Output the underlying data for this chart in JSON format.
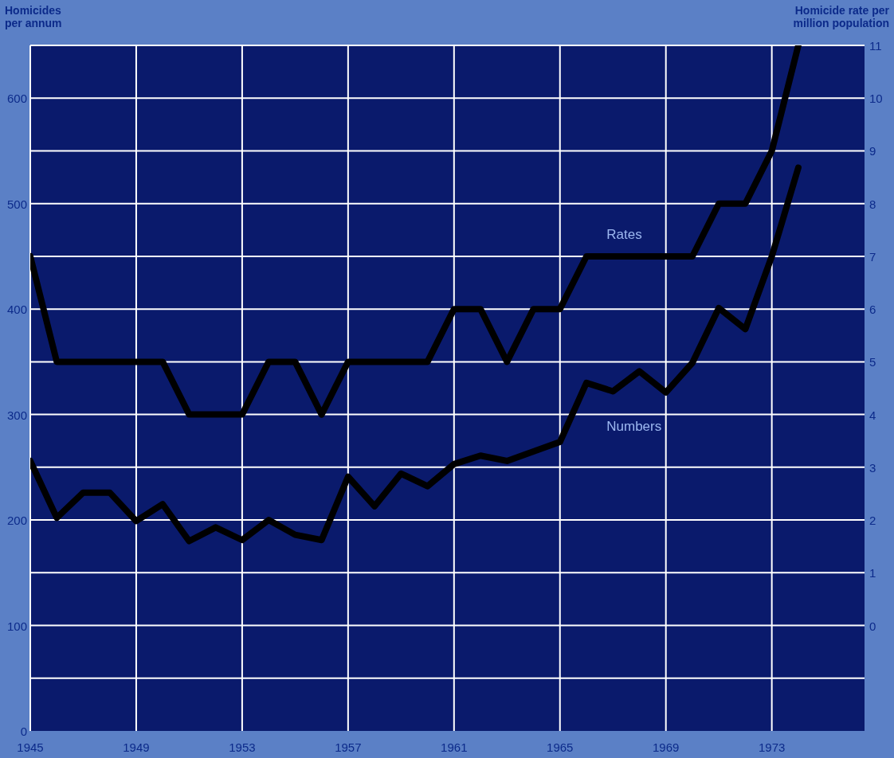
{
  "chart_data": {
    "type": "line",
    "ylabel": "Homicides\nper annum",
    "y2label": "Homicide rate per\nmillion population",
    "x": [
      1945,
      1946,
      1947,
      1948,
      1949,
      1950,
      1951,
      1952,
      1953,
      1954,
      1955,
      1956,
      1957,
      1958,
      1959,
      1960,
      1961,
      1962,
      1963,
      1964,
      1965,
      1966,
      1967,
      1968,
      1969,
      1970,
      1971,
      1972,
      1973,
      1974
    ],
    "series": [
      {
        "name": "Rates",
        "color": "#000000",
        "axis": "y2",
        "values": [
          7,
          5,
          5,
          5,
          5,
          5,
          4,
          4,
          4,
          5,
          5,
          4,
          5,
          5,
          5,
          5,
          6,
          6,
          5,
          6,
          6,
          7,
          7,
          7,
          7,
          7,
          8,
          8,
          9,
          11
        ]
      },
      {
        "name": "Numbers",
        "color": "#000000",
        "values": [
          256,
          202,
          226,
          226,
          199,
          215,
          180,
          193,
          181,
          200,
          186,
          181,
          241,
          213,
          244,
          232,
          253,
          261,
          256,
          265,
          274,
          330,
          322,
          341,
          321,
          349,
          401,
          381,
          450,
          534
        ]
      }
    ],
    "xlim": [
      1945,
      1976.5
    ],
    "xticks": [
      1945,
      1949,
      1953,
      1957,
      1961,
      1965,
      1969,
      1973
    ],
    "ylim": [
      0,
      650
    ],
    "yticks": [
      0,
      100,
      200,
      300,
      400,
      500,
      600
    ],
    "y2lim": [
      -2,
      11
    ],
    "y2ticks": [
      {
        "value": -1,
        "label": null
      },
      0,
      1,
      2,
      3,
      4,
      5,
      6,
      7,
      8,
      9,
      10,
      11
    ],
    "grid": true,
    "marker": "none",
    "line_style": "solid"
  }
}
